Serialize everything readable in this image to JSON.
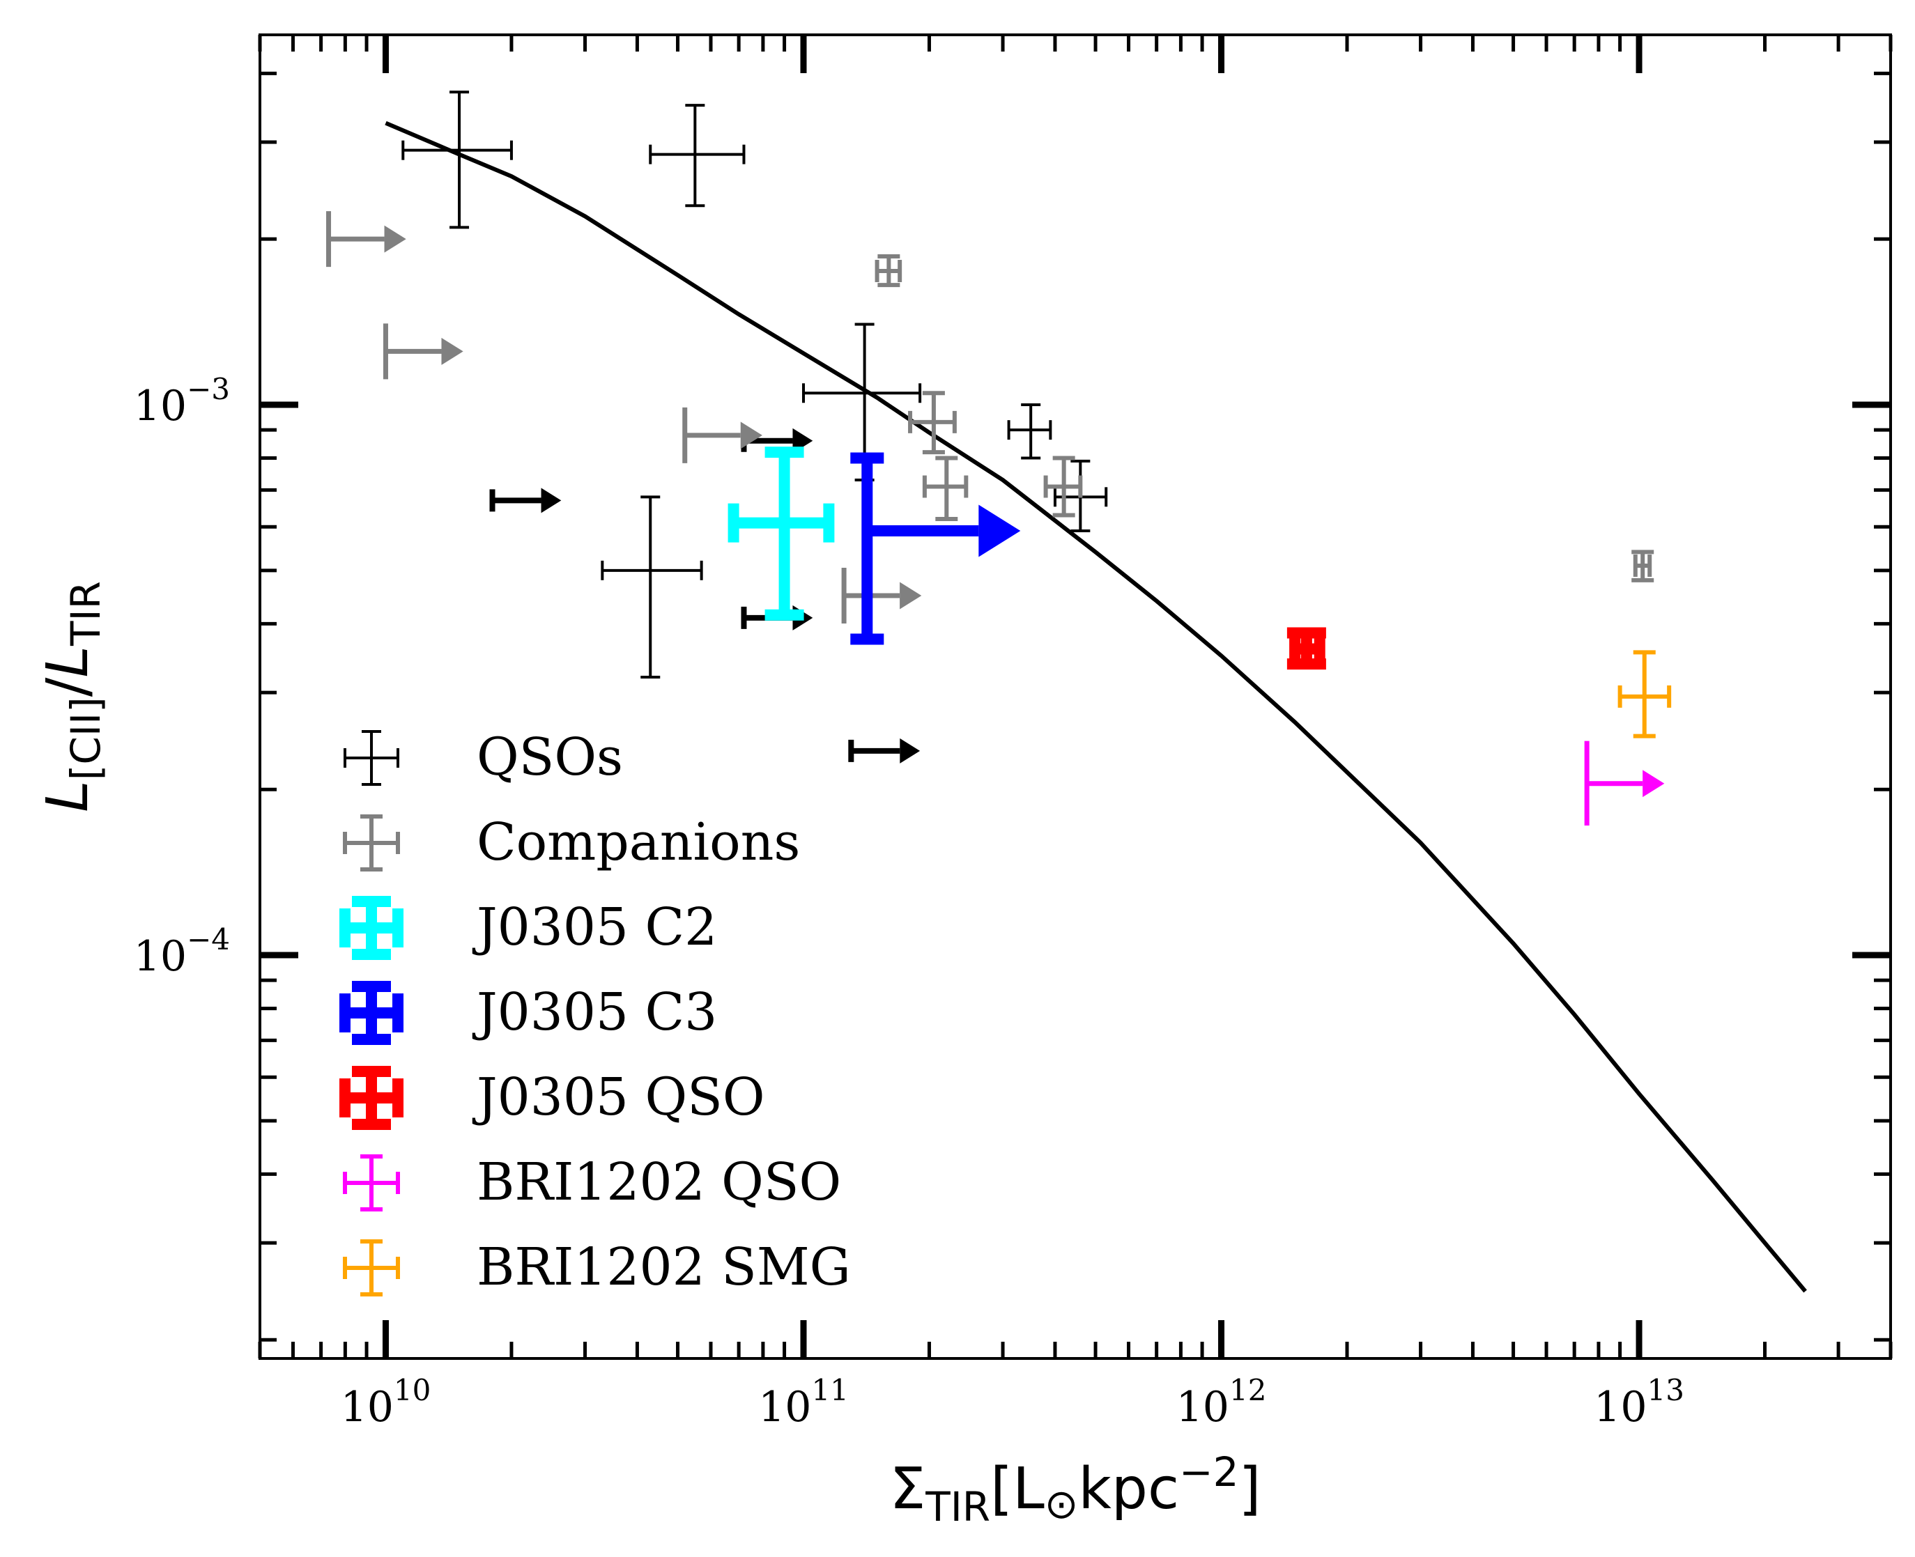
{
  "chart_data": {
    "type": "scatter",
    "title": "",
    "xlabel": {
      "base": "Σ",
      "sub": "TIR",
      "unit_open": "[L",
      "sun": "⊙",
      "unit_mid": "kpc",
      "sup": "−2",
      "unit_close": "]"
    },
    "ylabel": {
      "L1": "L",
      "sub1": "[CII]",
      "slash": "/",
      "L2": "L",
      "sub2": "TIR"
    },
    "x_scale": "log",
    "y_scale": "log",
    "xlim": [
      5000000000.0,
      40000000000000.0
    ],
    "ylim": [
      1.85e-05,
      0.0047
    ],
    "x_ticks": [
      {
        "value": 10000000000.0,
        "base": "10",
        "exp": "10"
      },
      {
        "value": 100000000000.0,
        "base": "10",
        "exp": "11"
      },
      {
        "value": 1000000000000.0,
        "base": "10",
        "exp": "12"
      },
      {
        "value": 10000000000000.0,
        "base": "10",
        "exp": "13"
      }
    ],
    "y_ticks": [
      {
        "value": 0.0001,
        "base": "10",
        "exp": "−4"
      },
      {
        "value": 0.001,
        "base": "10",
        "exp": "−3"
      }
    ],
    "grid": false,
    "legend_position": "lower-left",
    "model_curve": {
      "color": "#000000",
      "x": [
        10000000000.0,
        15000000000.0,
        20000000000.0,
        30000000000.0,
        50000000000.0,
        70000000000.0,
        100000000000.0,
        150000000000.0,
        200000000000.0,
        300000000000.0,
        500000000000.0,
        700000000000.0,
        1000000000000.0,
        1500000000000.0,
        2000000000000.0,
        3000000000000.0,
        5000000000000.0,
        7000000000000.0,
        10000000000000.0,
        15000000000000.0,
        20000000000000.0,
        25000000000000.0
      ],
      "y": [
        0.00325,
        0.00285,
        0.0026,
        0.0022,
        0.00172,
        0.00146,
        0.00124,
        0.00103,
        0.00089,
        0.00073,
        0.00054,
        0.00044,
        0.00035,
        0.000265,
        0.000215,
        0.00016,
        0.000105,
        7.8e-05,
        5.6e-05,
        3.9e-05,
        3e-05,
        2.45e-05
      ]
    },
    "series": [
      {
        "name": "QSOs",
        "color": "#000000",
        "weight": "thin",
        "points": [
          {
            "x": 15000000000.0,
            "y": 0.0029,
            "xlo": 11000000000.0,
            "xhi": 20000000000.0,
            "ylo": 0.0021,
            "yhi": 0.0037
          },
          {
            "x": 55000000000.0,
            "y": 0.00285,
            "xlo": 43000000000.0,
            "xhi": 72000000000.0,
            "ylo": 0.0023,
            "yhi": 0.0035
          },
          {
            "x": 140000000000.0,
            "y": 0.00105,
            "xlo": 100000000000.0,
            "xhi": 190000000000.0,
            "ylo": 0.00073,
            "yhi": 0.0014
          },
          {
            "x": 350000000000.0,
            "y": 0.0009,
            "xlo": 310000000000.0,
            "xhi": 390000000000.0,
            "ylo": 0.0008,
            "yhi": 0.001
          },
          {
            "x": 460000000000.0,
            "y": 0.00068,
            "xlo": 400000000000.0,
            "xhi": 530000000000.0,
            "ylo": 0.00059,
            "yhi": 0.00079
          },
          {
            "x": 43000000000.0,
            "y": 0.0005,
            "xlo": 33000000000.0,
            "xhi": 57000000000.0,
            "ylo": 0.00032,
            "yhi": 0.00068
          }
        ],
        "lower_limits": [
          {
            "x": 18000000000.0,
            "y": 0.00067
          },
          {
            "x": 72000000000.0,
            "y": 0.00086
          },
          {
            "x": 72000000000.0,
            "y": 0.00041
          },
          {
            "x": 130000000000.0,
            "y": 0.000235
          }
        ]
      },
      {
        "name": "Companions",
        "color": "#808080",
        "weight": "normal",
        "points": [
          {
            "x": 160000000000.0,
            "y": 0.00175,
            "xlo": 150000000000.0,
            "xhi": 170000000000.0,
            "ylo": 0.00165,
            "yhi": 0.00186
          },
          {
            "x": 205000000000.0,
            "y": 0.00093,
            "xlo": 180000000000.0,
            "xhi": 230000000000.0,
            "ylo": 0.00082,
            "yhi": 0.00105
          },
          {
            "x": 220000000000.0,
            "y": 0.00071,
            "xlo": 195000000000.0,
            "xhi": 245000000000.0,
            "ylo": 0.00062,
            "yhi": 0.0008
          },
          {
            "x": 420000000000.0,
            "y": 0.00071,
            "xlo": 380000000000.0,
            "xhi": 460000000000.0,
            "ylo": 0.00063,
            "yhi": 0.0008
          },
          {
            "x": 10200000000000.0,
            "y": 0.00051,
            "xlo": 9800000000000.0,
            "xhi": 10600000000000.0,
            "ylo": 0.00048,
            "yhi": 0.00054
          }
        ],
        "lower_limits": [
          {
            "x": 7300000000.0,
            "y": 0.002
          },
          {
            "x": 10000000000.0,
            "y": 0.00125
          },
          {
            "x": 52000000000.0,
            "y": 0.00088
          },
          {
            "x": 125000000000.0,
            "y": 0.00045
          }
        ]
      },
      {
        "name": "J0305 C2",
        "color": "#00ffff",
        "weight": "bold",
        "points": [
          {
            "x": 90000000000.0,
            "y": 0.00061,
            "xlo": 68000000000.0,
            "xhi": 115000000000.0,
            "ylo": 0.000415,
            "yhi": 0.00082
          }
        ],
        "lower_limits": []
      },
      {
        "name": "J0305 C3",
        "color": "#0000ff",
        "weight": "bold",
        "points": [],
        "lower_limits": [
          {
            "x": 142000000000.0,
            "y": 0.00059,
            "ylo": 0.000375,
            "yhi": 0.0008
          }
        ]
      },
      {
        "name": "J0305 QSO",
        "color": "#ff0000",
        "weight": "bold",
        "points": [
          {
            "x": 1600000000000.0,
            "y": 0.00036,
            "xlo": 1500000000000.0,
            "xhi": 1720000000000.0,
            "ylo": 0.000338,
            "yhi": 0.000385
          }
        ],
        "lower_limits": []
      },
      {
        "name": "BRI1202 QSO",
        "color": "#ff00ff",
        "weight": "normal",
        "points": [],
        "lower_limits": [
          {
            "x": 7500000000000.0,
            "y": 0.000205,
            "ylo": 0.000172,
            "yhi": 0.000245
          }
        ]
      },
      {
        "name": "BRI1202 SMG",
        "color": "#ffa500",
        "weight": "normal",
        "points": [
          {
            "x": 10300000000000.0,
            "y": 0.000295,
            "xlo": 9000000000000.0,
            "xhi": 11800000000000.0,
            "ylo": 0.00025,
            "yhi": 0.000355
          }
        ],
        "lower_limits": []
      }
    ]
  }
}
